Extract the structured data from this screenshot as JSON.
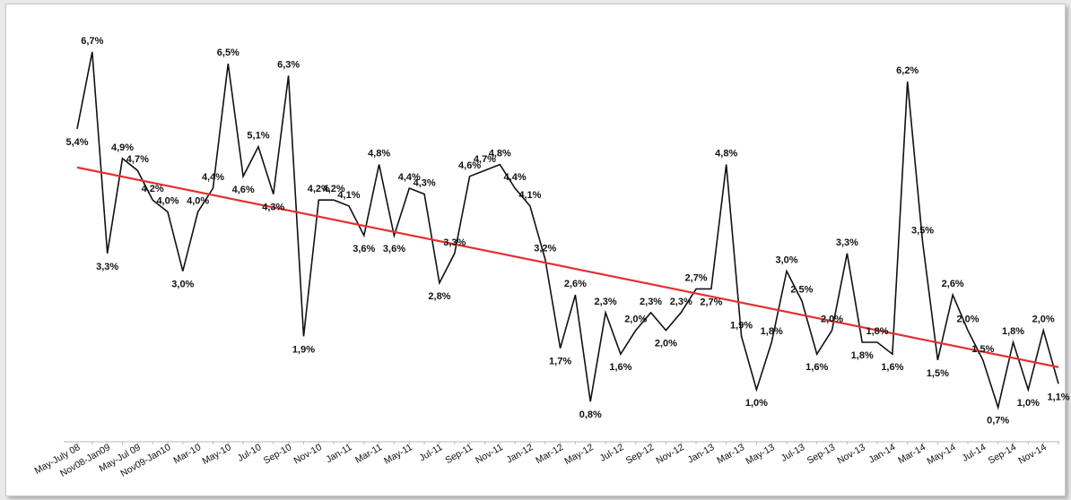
{
  "chart_data": {
    "type": "line",
    "title": "",
    "xlabel": "",
    "ylabel": "",
    "ylim": [
      0,
      7.5
    ],
    "grid": false,
    "legend": "none",
    "colors": {
      "series": "#111111",
      "trend": "#e53030",
      "background": "#ffffff"
    },
    "x_tick_labels": [
      "May-July 08",
      "Nov08-Jan09",
      "May-Jul 09",
      "Nov09-Jan10",
      "Mar-10",
      "May-10",
      "Jul-10",
      "Sep-10",
      "Nov-10",
      "Jan-11",
      "Mar-11",
      "May-11",
      "Jul-11",
      "Sep-11",
      "Nov-11",
      "Jan-12",
      "Mar-12",
      "May-12",
      "Jul-12",
      "Sep-12",
      "Nov-12",
      "Jan-13",
      "Mar-13",
      "May-13",
      "Jul-13",
      "Sep-13",
      "Nov-13",
      "Jan-14",
      "Mar-14",
      "May-14",
      "Jul-14",
      "Sep-14",
      "Nov-14"
    ],
    "series": [
      {
        "values": [
          5.4,
          6.7,
          3.3,
          4.9,
          4.7,
          4.2,
          4.0,
          3.0,
          4.0,
          4.4,
          6.5,
          4.6,
          5.1,
          4.3,
          6.3,
          1.9,
          4.2,
          4.2,
          4.1,
          3.6,
          4.8,
          3.6,
          4.4,
          4.3,
          2.8,
          3.3,
          4.6,
          4.7,
          4.8,
          4.4,
          4.1,
          3.2,
          1.7,
          2.6,
          0.8,
          2.3,
          1.6,
          2.0,
          2.3,
          2.0,
          2.3,
          2.7,
          2.7,
          4.8,
          1.9,
          1.0,
          1.8,
          3.0,
          2.5,
          1.6,
          2.0,
          3.3,
          1.8,
          1.8,
          1.6,
          6.2,
          3.5,
          1.5,
          2.6,
          2.0,
          1.5,
          0.7,
          1.8,
          1.0,
          2.0,
          1.1
        ],
        "labels": [
          "5,4%",
          "6,7%",
          "3,3%",
          "4,9%",
          "4,7%",
          "4,2%",
          "4,0%",
          "3,0%",
          "4,0%",
          "4,4%",
          "6,5%",
          "4,6%",
          "5,1%",
          "4,3%",
          "6,3%",
          "1,9%",
          "4,2%",
          "4,2%",
          "4,1%",
          "3,6%",
          "4,8%",
          "3,6%",
          "4,4%",
          "4,3%",
          "2,8%",
          "3,3%",
          "4,6%",
          "4,7%",
          "4,8%",
          "4,4%",
          "4,1%",
          "3,2%",
          "1,7%",
          "2,6%",
          "0,8%",
          "2,3%",
          "1,6%",
          "2,0%",
          "2,3%",
          "2,0%",
          "2,3%",
          "2,7%",
          "2,7%",
          "4,8%",
          "1,9%",
          "1,0%",
          "1,8%",
          "3,0%",
          "2,5%",
          "1,6%",
          "2,0%",
          "3,3%",
          "1,8%",
          "1,8%",
          "1,6%",
          "6,2%",
          "3,5%",
          "1,5%",
          "2,6%",
          "2,0%",
          "1,5%",
          "0,7%",
          "1,8%",
          "1,0%",
          "2,0%",
          "1,1%"
        ]
      }
    ],
    "trendline": {
      "type": "linear",
      "start": 4.75,
      "end": 1.38
    }
  }
}
